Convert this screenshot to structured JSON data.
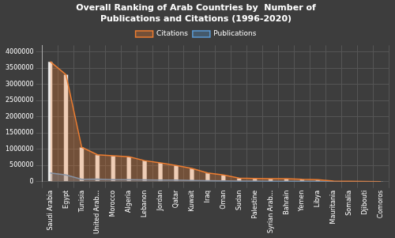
{
  "chart_data": {
    "type": "bar",
    "title": "Overall Ranking of Arab Countries by  Number of\nPublications and Citations (1996-2020)",
    "categories": [
      "Saudi Arabia",
      "Egypt",
      "Tunisia",
      "United Arab...",
      "Morocco",
      "Algeria",
      "Lebanon",
      "Jordan",
      "Qatar",
      "Kuwait",
      "Iraq",
      "Oman",
      "Sudan",
      "Palestine",
      "Syrian Arab...",
      "Bahrain",
      "Yemen",
      "Libya",
      "Mauritania",
      "Somalia",
      "Djibouti",
      "Comoros"
    ],
    "series": [
      {
        "type": "bar",
        "color": "#f0f0f0",
        "values": [
          3700000,
          3300000,
          1060000,
          830000,
          800000,
          770000,
          650000,
          580000,
          500000,
          410000,
          270000,
          210000,
          110000,
          100000,
          95000,
          90000,
          72000,
          65000,
          18000,
          12000,
          8000,
          4000
        ]
      },
      {
        "name": "Citations",
        "type": "line",
        "color": "#ed7d31",
        "values": [
          3700000,
          3300000,
          1060000,
          830000,
          800000,
          770000,
          650000,
          580000,
          500000,
          410000,
          270000,
          210000,
          110000,
          100000,
          95000,
          90000,
          72000,
          65000,
          18000,
          12000,
          8000,
          4000
        ]
      },
      {
        "name": "Publications",
        "type": "line",
        "color": "#5b9bd5",
        "values": [
          270000,
          210000,
          75000,
          80000,
          65000,
          60000,
          55000,
          52000,
          48000,
          40000,
          30000,
          28000,
          22000,
          18000,
          16000,
          14000,
          13000,
          12000,
          3000,
          2000,
          1500,
          1000
        ]
      }
    ],
    "ylim": [
      0,
      4200000
    ],
    "yticks": [
      0,
      500000,
      1000000,
      1500000,
      2000000,
      2500000,
      3000000,
      3500000,
      4000000
    ],
    "grid": true,
    "legend": "top"
  }
}
